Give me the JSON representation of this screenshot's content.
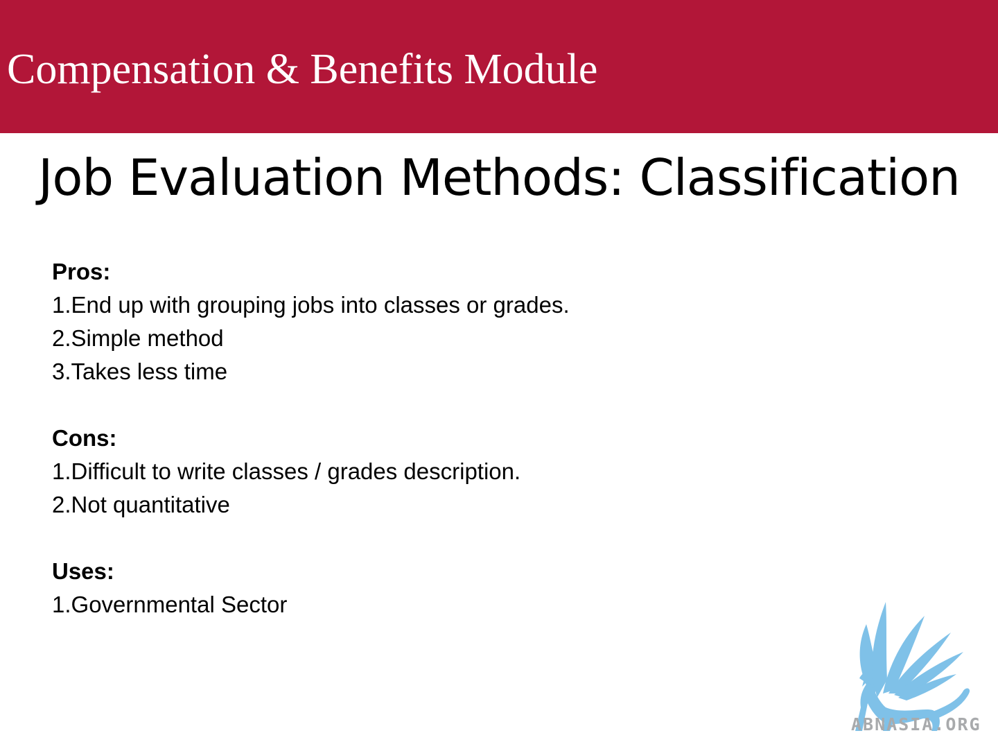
{
  "header": {
    "title": "Compensation & Benefits Module",
    "color": "#b21638"
  },
  "slide": {
    "title": "Job Evaluation Methods: Classification"
  },
  "sections": [
    {
      "heading": "Pros:",
      "items": [
        "1.End up with grouping jobs into classes or grades.",
        "2.Simple method",
        "3.Takes less time"
      ]
    },
    {
      "heading": "Cons:",
      "items": [
        "1.Difficult to write classes / grades description.",
        "2.Not quantitative"
      ]
    },
    {
      "heading": "Uses:",
      "items": [
        "1.Governmental Sector"
      ]
    }
  ],
  "logo": {
    "icon": "griffin-icon",
    "text": "ABNASIA.ORG",
    "color": "#7fc1e8"
  }
}
